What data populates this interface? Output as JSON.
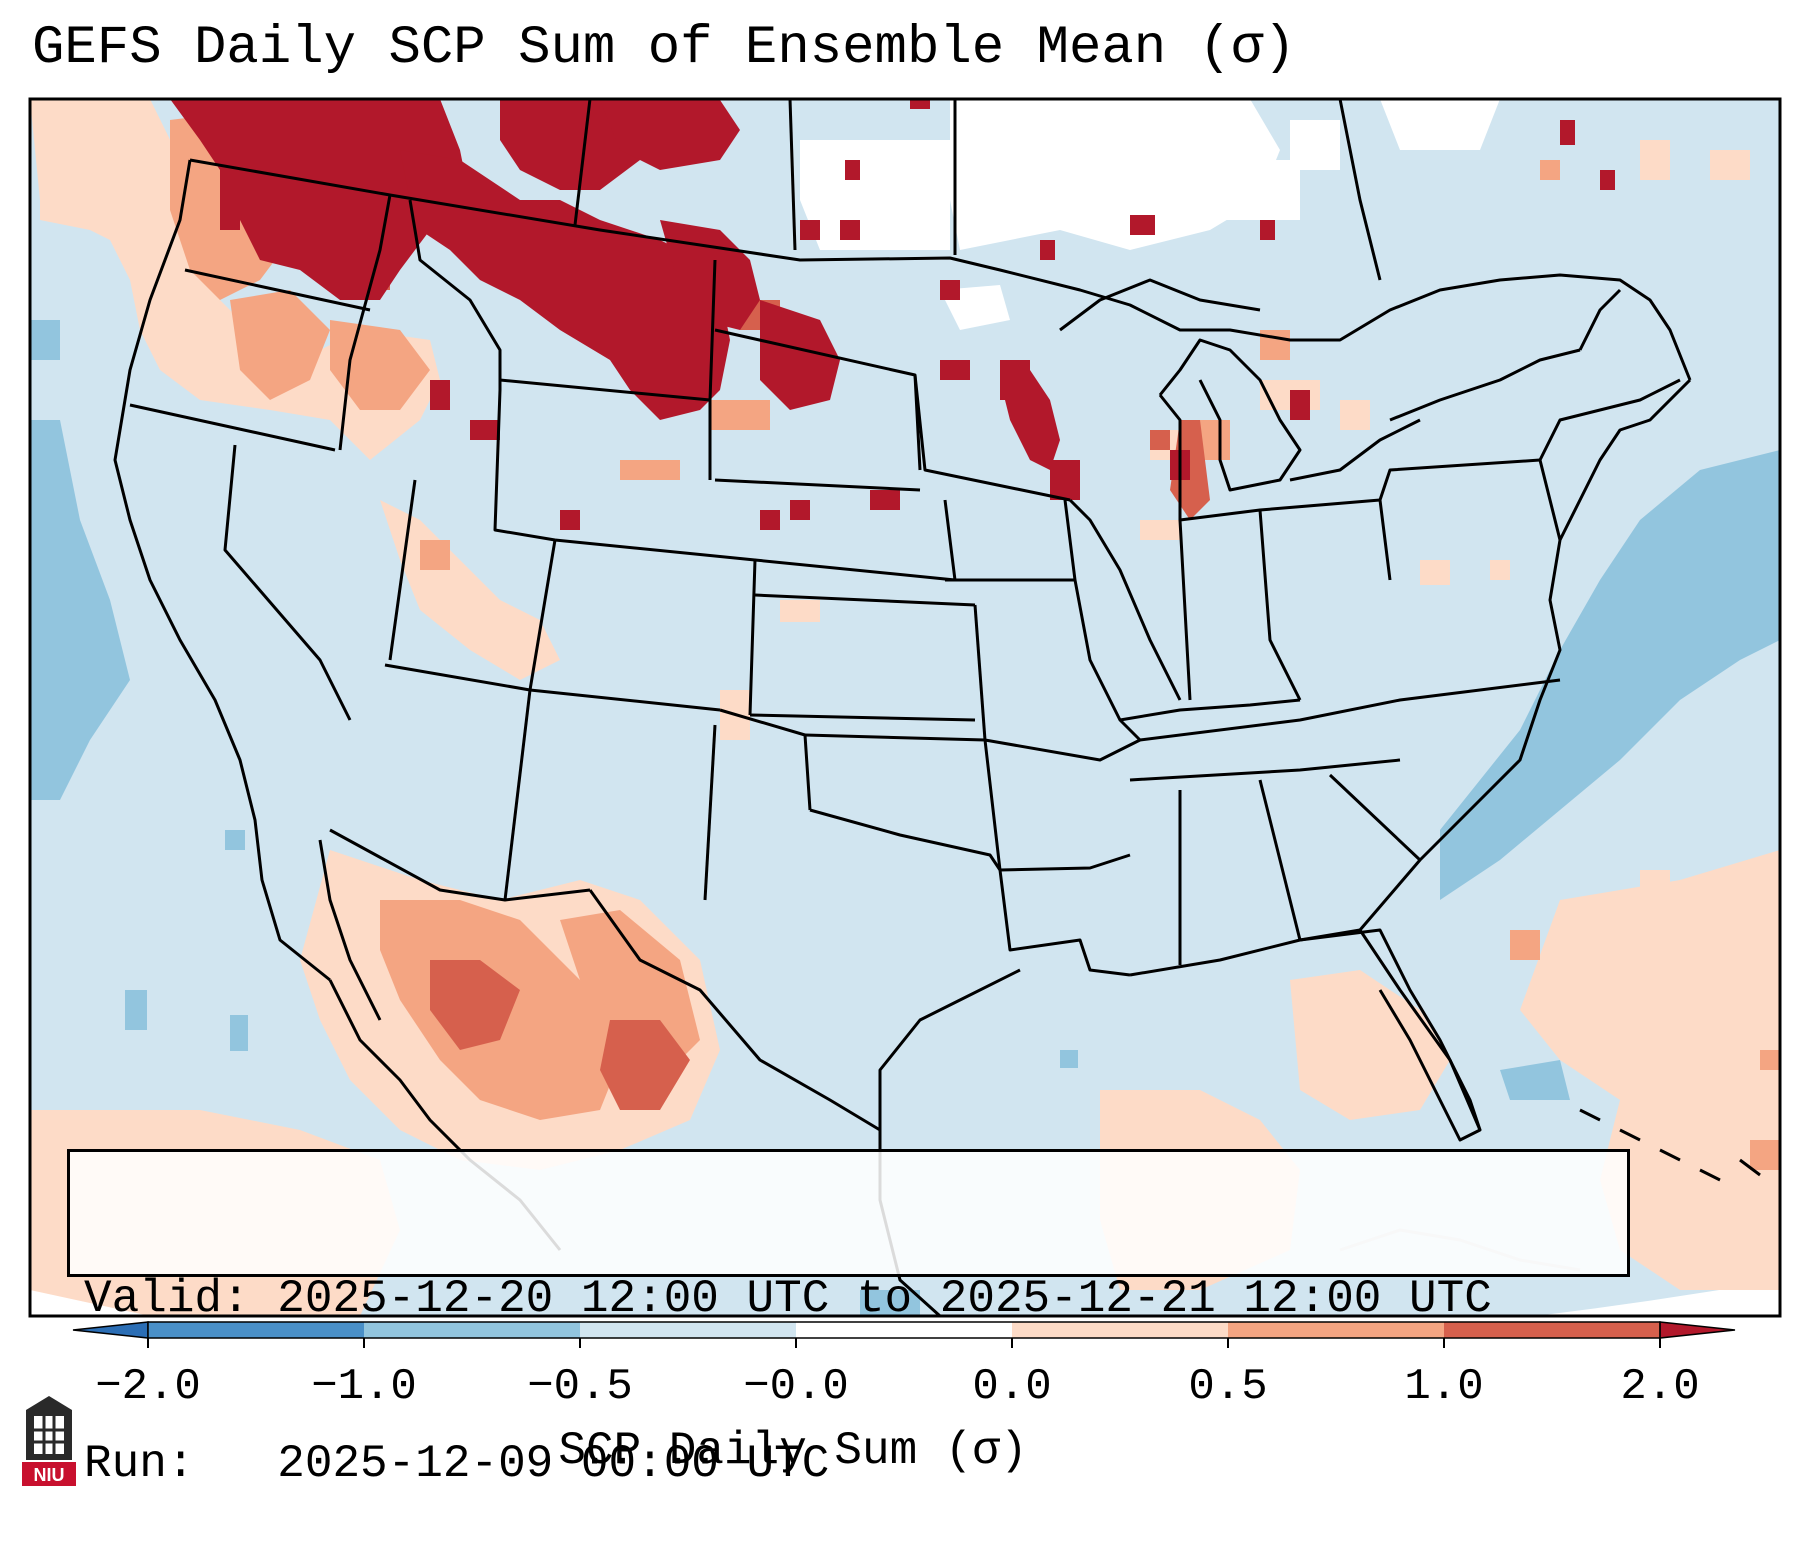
{
  "title": "GEFS Daily SCP Sum of Ensemble Mean (σ)",
  "info": {
    "valid_line": "Valid: 2025-12-20 12:00 UTC to 2025-12-21 12:00 UTC",
    "run_line": "Run:   2025-12-09 00:00 UTC"
  },
  "colorbar": {
    "label": "SCP Daily Sum (σ)",
    "ticks": [
      "−2.0",
      "−1.0",
      "−0.5",
      "−0.0",
      "0.0",
      "0.5",
      "1.0",
      "2.0"
    ],
    "bins": [
      {
        "range": "< -2.0",
        "color": "#2b6eb5"
      },
      {
        "range": "-2.0 to -1.0",
        "color": "#4a90c8"
      },
      {
        "range": "-1.0 to -0.5",
        "color": "#92c5de"
      },
      {
        "range": "-0.5 to -0.0",
        "color": "#d1e5f0"
      },
      {
        "range": "-0.0 to 0.0",
        "color": "#ffffff"
      },
      {
        "range": "0.0 to 0.5",
        "color": "#fddbc7"
      },
      {
        "range": "0.5 to 1.0",
        "color": "#f4a582"
      },
      {
        "range": "1.0 to 2.0",
        "color": "#d6604d"
      },
      {
        "range": "> 2.0",
        "color": "#b2182b"
      }
    ]
  },
  "chart_data": {
    "type": "heatmap",
    "title": "GEFS Daily SCP Sum of Ensemble Mean (σ)",
    "variable": "SCP Daily Sum (σ)",
    "color_levels": [
      -2.0,
      -1.0,
      -0.5,
      -0.0,
      0.0,
      0.5,
      1.0,
      2.0
    ],
    "regions": [
      {
        "area": "Washington / northern Idaho / western Montana",
        "category": "> 2.0"
      },
      {
        "area": "Montana / northern Wyoming / western Dakotas",
        "category": "> 2.0"
      },
      {
        "area": "Oregon / southern Idaho",
        "category": "0.0 to 1.0"
      },
      {
        "area": "southern Wisconsin / northern Illinois",
        "category": "> 2.0"
      },
      {
        "area": "southern Lake Michigan",
        "category": "1.0 to 2.0"
      },
      {
        "area": "northern Mexico (Sonora / Chihuahua / Coahuila)",
        "category": "0.0 to 2.0"
      },
      {
        "area": "Western Atlantic offshore",
        "category": "-1.0 to -0.5"
      },
      {
        "area": "Eastern Pacific offshore",
        "category": "-1.0 to -0.5"
      },
      {
        "area": "Central and southern Canada",
        "category": "-0.0 to 0.0"
      },
      {
        "area": "Most of the contiguous US",
        "category": "-0.5 to -0.0"
      }
    ]
  },
  "logo_text": "NIU"
}
